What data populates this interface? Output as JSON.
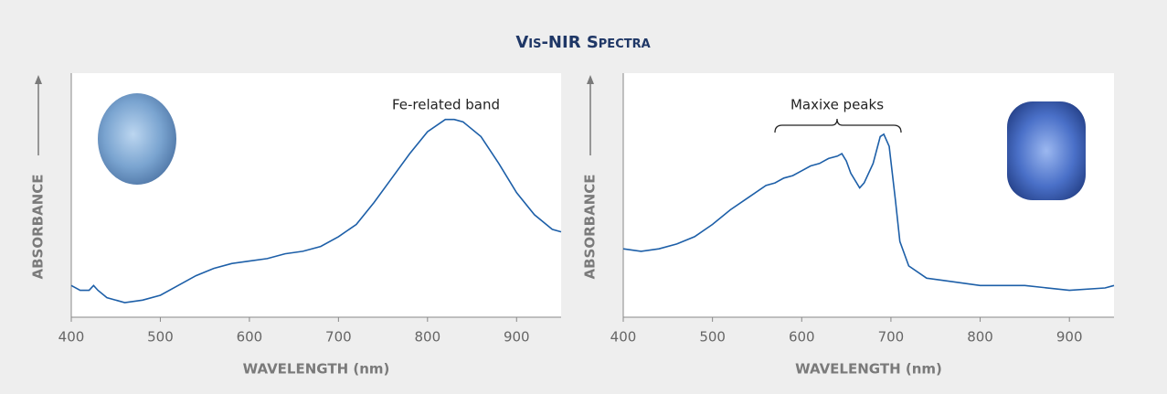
{
  "title": "Vis-NIR Spectra",
  "chart_data": [
    {
      "type": "line",
      "x_label": "WAVELENGTH (nm)",
      "y_label": "ABSORBANCE",
      "annotation": "Fe-related band",
      "xlim": [
        400,
        950
      ],
      "xticks": [
        400,
        500,
        600,
        700,
        800,
        900
      ],
      "ylim": [
        0,
        1
      ],
      "color": "#1d5fa8",
      "x": [
        400,
        410,
        420,
        425,
        430,
        440,
        460,
        480,
        500,
        520,
        540,
        560,
        580,
        600,
        620,
        640,
        660,
        680,
        700,
        720,
        740,
        760,
        780,
        800,
        820,
        830,
        840,
        860,
        880,
        900,
        920,
        940,
        950
      ],
      "values": [
        0.13,
        0.11,
        0.11,
        0.13,
        0.11,
        0.08,
        0.06,
        0.07,
        0.09,
        0.13,
        0.17,
        0.2,
        0.22,
        0.23,
        0.24,
        0.26,
        0.27,
        0.29,
        0.33,
        0.38,
        0.47,
        0.57,
        0.67,
        0.76,
        0.81,
        0.81,
        0.8,
        0.74,
        0.63,
        0.51,
        0.42,
        0.36,
        0.35
      ]
    },
    {
      "type": "line",
      "x_label": "WAVELENGTH (nm)",
      "y_label": "ABSORBANCE",
      "annotation": "Maxixe peaks",
      "xlim": [
        400,
        950
      ],
      "xticks": [
        400,
        500,
        600,
        700,
        800,
        900
      ],
      "ylim": [
        0,
        1
      ],
      "color": "#1d5fa8",
      "x": [
        400,
        420,
        440,
        460,
        480,
        500,
        520,
        540,
        560,
        570,
        580,
        590,
        600,
        610,
        620,
        625,
        630,
        640,
        645,
        650,
        655,
        665,
        670,
        680,
        688,
        692,
        698,
        705,
        710,
        720,
        740,
        760,
        800,
        850,
        900,
        940,
        950
      ],
      "values": [
        0.28,
        0.27,
        0.28,
        0.3,
        0.33,
        0.38,
        0.44,
        0.49,
        0.54,
        0.55,
        0.57,
        0.58,
        0.6,
        0.62,
        0.63,
        0.64,
        0.65,
        0.66,
        0.67,
        0.64,
        0.59,
        0.53,
        0.55,
        0.63,
        0.74,
        0.75,
        0.7,
        0.48,
        0.31,
        0.21,
        0.16,
        0.15,
        0.13,
        0.13,
        0.11,
        0.12,
        0.13
      ]
    }
  ]
}
